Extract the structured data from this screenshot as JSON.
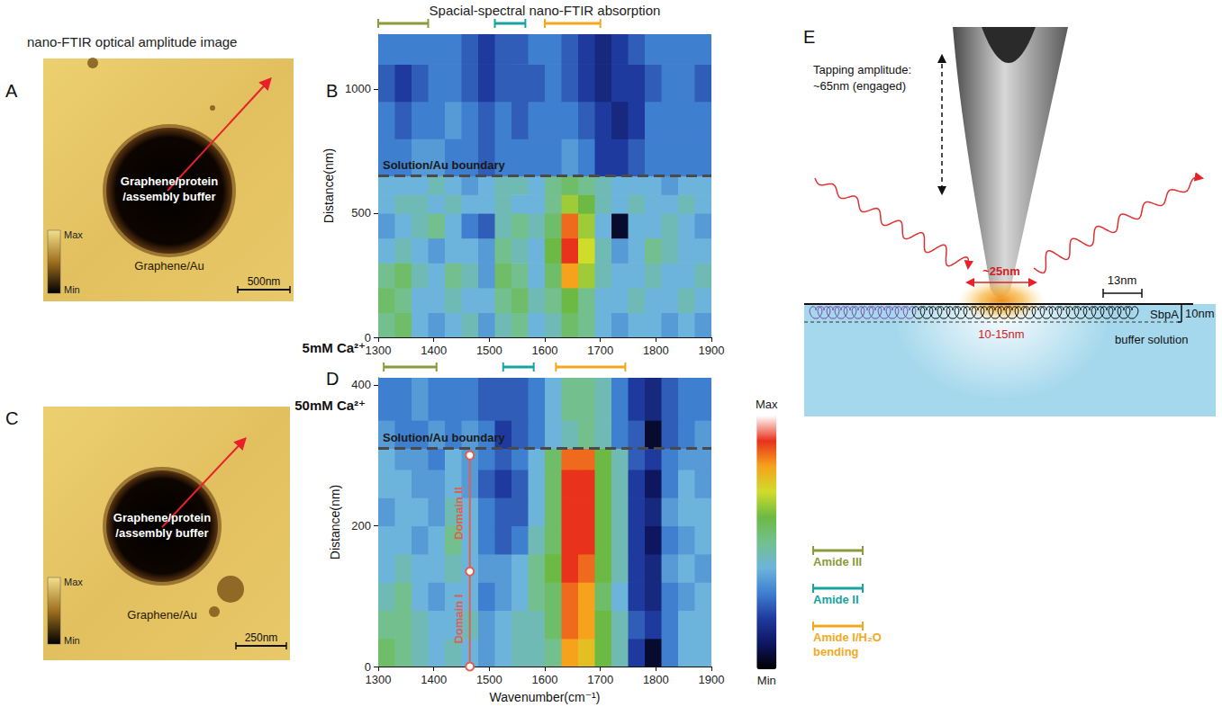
{
  "header": "Spacial-spectral nano-FTIR absorption",
  "images": [
    {
      "panel": "A",
      "title": "nano-FTIR optical amplitude image",
      "inside": "Graphene/protein/assembly buffer",
      "outside": "Graphene/Au",
      "scale_bar": "500nm",
      "colorbar": [
        "Max",
        "Min"
      ]
    },
    {
      "panel": "C",
      "inside": "Graphene/protein/assembly buffer",
      "outside": "Graphene/Au",
      "scale_bar": "250nm",
      "colorbar": [
        "Max",
        "Min"
      ]
    }
  ],
  "chart_data": [
    {
      "type": "heatmap",
      "panel": "B",
      "row_label": "5mM Ca²⁺",
      "y_label": "Distance(nm)",
      "xlim": [
        1300,
        1900
      ],
      "xticks": [
        1300,
        1400,
        1500,
        1600,
        1700,
        1800,
        1900
      ],
      "ylim": [
        0,
        1220
      ],
      "yticks": [
        0,
        500,
        1000
      ],
      "x_bins": [
        1300,
        1330,
        1360,
        1390,
        1420,
        1450,
        1480,
        1510,
        1540,
        1570,
        1600,
        1630,
        1660,
        1690,
        1720,
        1750,
        1780,
        1810,
        1840,
        1870,
        1900
      ],
      "y_bins": [
        0,
        100,
        200,
        300,
        400,
        500,
        575,
        650,
        800,
        950,
        1100,
        1220
      ],
      "cells": [
        [
          5,
          5.5,
          4,
          3.5,
          4,
          4.5,
          3.5,
          4.5,
          5,
          4,
          4.5,
          5.5,
          5,
          4,
          3.5,
          4,
          4,
          3.5,
          4,
          3.5
        ],
        [
          5.5,
          5,
          4,
          4,
          4.5,
          4,
          4,
          5,
          5.5,
          4.5,
          5,
          6,
          5,
          4,
          4,
          4.5,
          4,
          4,
          4.5,
          4
        ],
        [
          5,
          5.5,
          4.5,
          4,
          5,
          4.5,
          3.5,
          5.5,
          5,
          4,
          5.5,
          8,
          6.5,
          4.5,
          4,
          4,
          4.5,
          4,
          4,
          4.5
        ],
        [
          4,
          4.5,
          4,
          3.5,
          4,
          4,
          3.5,
          5,
          4.5,
          4,
          6,
          9,
          7,
          4.5,
          3.5,
          4,
          5,
          4.5,
          4,
          4
        ],
        [
          3.5,
          4,
          4.5,
          5,
          4,
          3,
          2.5,
          4.5,
          5,
          4.5,
          5.5,
          8.5,
          6.5,
          4,
          0.5,
          4,
          4,
          4.5,
          4,
          3.5
        ],
        [
          4,
          4.5,
          4.5,
          4,
          4.5,
          4,
          4,
          4.5,
          4,
          4,
          5,
          6.5,
          6,
          4.5,
          4,
          4.5,
          4,
          4,
          4.5,
          4
        ],
        [
          4,
          4,
          4,
          4.5,
          4,
          3.5,
          4,
          4.5,
          4.5,
          4,
          5,
          5.5,
          5,
          4.5,
          4,
          4,
          4,
          3.5,
          4,
          4
        ],
        [
          3,
          3,
          3.5,
          3.5,
          3,
          3,
          2.5,
          3,
          3,
          3,
          3,
          3.5,
          3,
          2,
          2,
          2.5,
          3,
          3,
          3,
          3
        ],
        [
          3,
          2.5,
          3,
          3,
          3.5,
          3,
          2.5,
          3,
          2.5,
          3,
          3,
          3,
          2.5,
          2,
          1.5,
          2,
          3,
          3,
          3,
          3
        ],
        [
          2.5,
          2,
          2.5,
          3,
          3,
          2.5,
          2,
          2.5,
          2.5,
          2.5,
          3,
          2.5,
          2,
          1.5,
          2,
          2,
          2.5,
          3,
          3,
          2.5
        ],
        [
          3,
          3,
          3,
          3,
          3,
          2.5,
          2,
          2.5,
          2.5,
          3,
          3,
          2.5,
          2,
          1.5,
          2,
          2.5,
          3,
          3,
          3,
          3
        ]
      ],
      "boundary": {
        "value": 650,
        "label": "Solution/Au boundary"
      },
      "bands": [
        {
          "name": "Amide III",
          "range": [
            1300,
            1390
          ]
        },
        {
          "name": "Amide II",
          "range": [
            1510,
            1565
          ]
        },
        {
          "name": "Amide I/H₂O bending",
          "range": [
            1600,
            1700
          ]
        }
      ]
    },
    {
      "type": "heatmap",
      "panel": "D",
      "row_label": "50mM Ca²⁺",
      "x_label": "Wavenumber(cm⁻¹)",
      "y_label": "Distance(nm)",
      "xlim": [
        1300,
        1900
      ],
      "xticks": [
        1300,
        1400,
        1500,
        1600,
        1700,
        1800,
        1900
      ],
      "ylim": [
        0,
        410
      ],
      "yticks": [
        0,
        200,
        400
      ],
      "x_bins": [
        1300,
        1330,
        1360,
        1390,
        1420,
        1450,
        1480,
        1510,
        1540,
        1570,
        1600,
        1630,
        1660,
        1690,
        1720,
        1750,
        1780,
        1810,
        1840,
        1870,
        1900
      ],
      "y_bins": [
        0,
        40,
        80,
        120,
        160,
        200,
        240,
        280,
        310,
        350,
        410
      ],
      "cells": [
        [
          5.5,
          5,
          4.5,
          4,
          4.5,
          4,
          3.5,
          4,
          4.5,
          4.5,
          5,
          8,
          7.5,
          6,
          4.5,
          2,
          0.5,
          3,
          4,
          4
        ],
        [
          5,
          5,
          4.5,
          4,
          4,
          4.5,
          3.5,
          4,
          4.5,
          4.5,
          5.5,
          8.5,
          8,
          6,
          4.5,
          2.5,
          2,
          3,
          4,
          4
        ],
        [
          4.5,
          5,
          4,
          3.5,
          4,
          4,
          3,
          3.5,
          4,
          5,
          5.5,
          8.5,
          8,
          5.5,
          4,
          2,
          1.5,
          3,
          3.5,
          4
        ],
        [
          4,
          4.5,
          4,
          4,
          4.5,
          4,
          3.5,
          3.5,
          4,
          5,
          6,
          9,
          8.5,
          6,
          4.5,
          2,
          1.5,
          3.5,
          4,
          3.5
        ],
        [
          4,
          4,
          3.5,
          4,
          5,
          4,
          3,
          2.5,
          3,
          4.5,
          5.5,
          9,
          9,
          6,
          4.5,
          2,
          1,
          3,
          3.5,
          4
        ],
        [
          3.5,
          4,
          4,
          3.5,
          4.5,
          4,
          3,
          2.5,
          2.5,
          4,
          5.5,
          9,
          9,
          6,
          4.5,
          2,
          1.5,
          3.5,
          4,
          4
        ],
        [
          4,
          4,
          3.5,
          3.5,
          4,
          3.5,
          2.5,
          2,
          2.5,
          4,
          5.5,
          9,
          9,
          6,
          4.5,
          2,
          1,
          3,
          4,
          3.5
        ],
        [
          4,
          3.5,
          3.5,
          3,
          4,
          3.5,
          3,
          2.5,
          3,
          4,
          5.5,
          8.5,
          8.5,
          6,
          4.5,
          2.5,
          2,
          3,
          3.5,
          3.5
        ],
        [
          3.5,
          3,
          3,
          3.5,
          3,
          3.5,
          3,
          2,
          2.5,
          3,
          4,
          4.5,
          5,
          4.5,
          3,
          2.5,
          0.5,
          2.5,
          3,
          3.5
        ],
        [
          3,
          3,
          3.5,
          3,
          3,
          3,
          2.5,
          2.5,
          2.5,
          3,
          4,
          5,
          5,
          4.5,
          3,
          2,
          1.5,
          2.5,
          3,
          3
        ]
      ],
      "boundary": {
        "value": 310,
        "label": "Solution/Au boundary"
      },
      "domain_x": 1465,
      "domains": [
        {
          "label": "Domain I",
          "range": [
            0,
            135
          ]
        },
        {
          "label": "Domain II",
          "range": [
            135,
            300
          ]
        }
      ],
      "bands": [
        {
          "name": "Amide III",
          "range": [
            1310,
            1405
          ]
        },
        {
          "name": "Amide II",
          "range": [
            1525,
            1580
          ]
        },
        {
          "name": "Amide I/H₂O bending",
          "range": [
            1620,
            1745
          ]
        }
      ],
      "colorbar": {
        "range": [
          0,
          10
        ],
        "ticks": [
          {
            "value": 0,
            "label": "Min"
          },
          {
            "value": 10,
            "label": "Max"
          }
        ]
      }
    }
  ],
  "band_legend": [
    {
      "name": "Amide III",
      "color": "#8b9a3b"
    },
    {
      "name": "Amide II",
      "color": "#17a3a0"
    },
    {
      "name": "Amide I/H₂O bending",
      "color": "#f3a91f"
    }
  ],
  "schematic": {
    "panel": "E",
    "tapping": [
      "Tapping amplitude:",
      "~65nm (engaged)"
    ],
    "spot": "~25nm",
    "spacing": "13nm",
    "layer": "SbpA",
    "thickness": "10nm",
    "depth": "10-15nm",
    "medium": "buffer solution"
  }
}
